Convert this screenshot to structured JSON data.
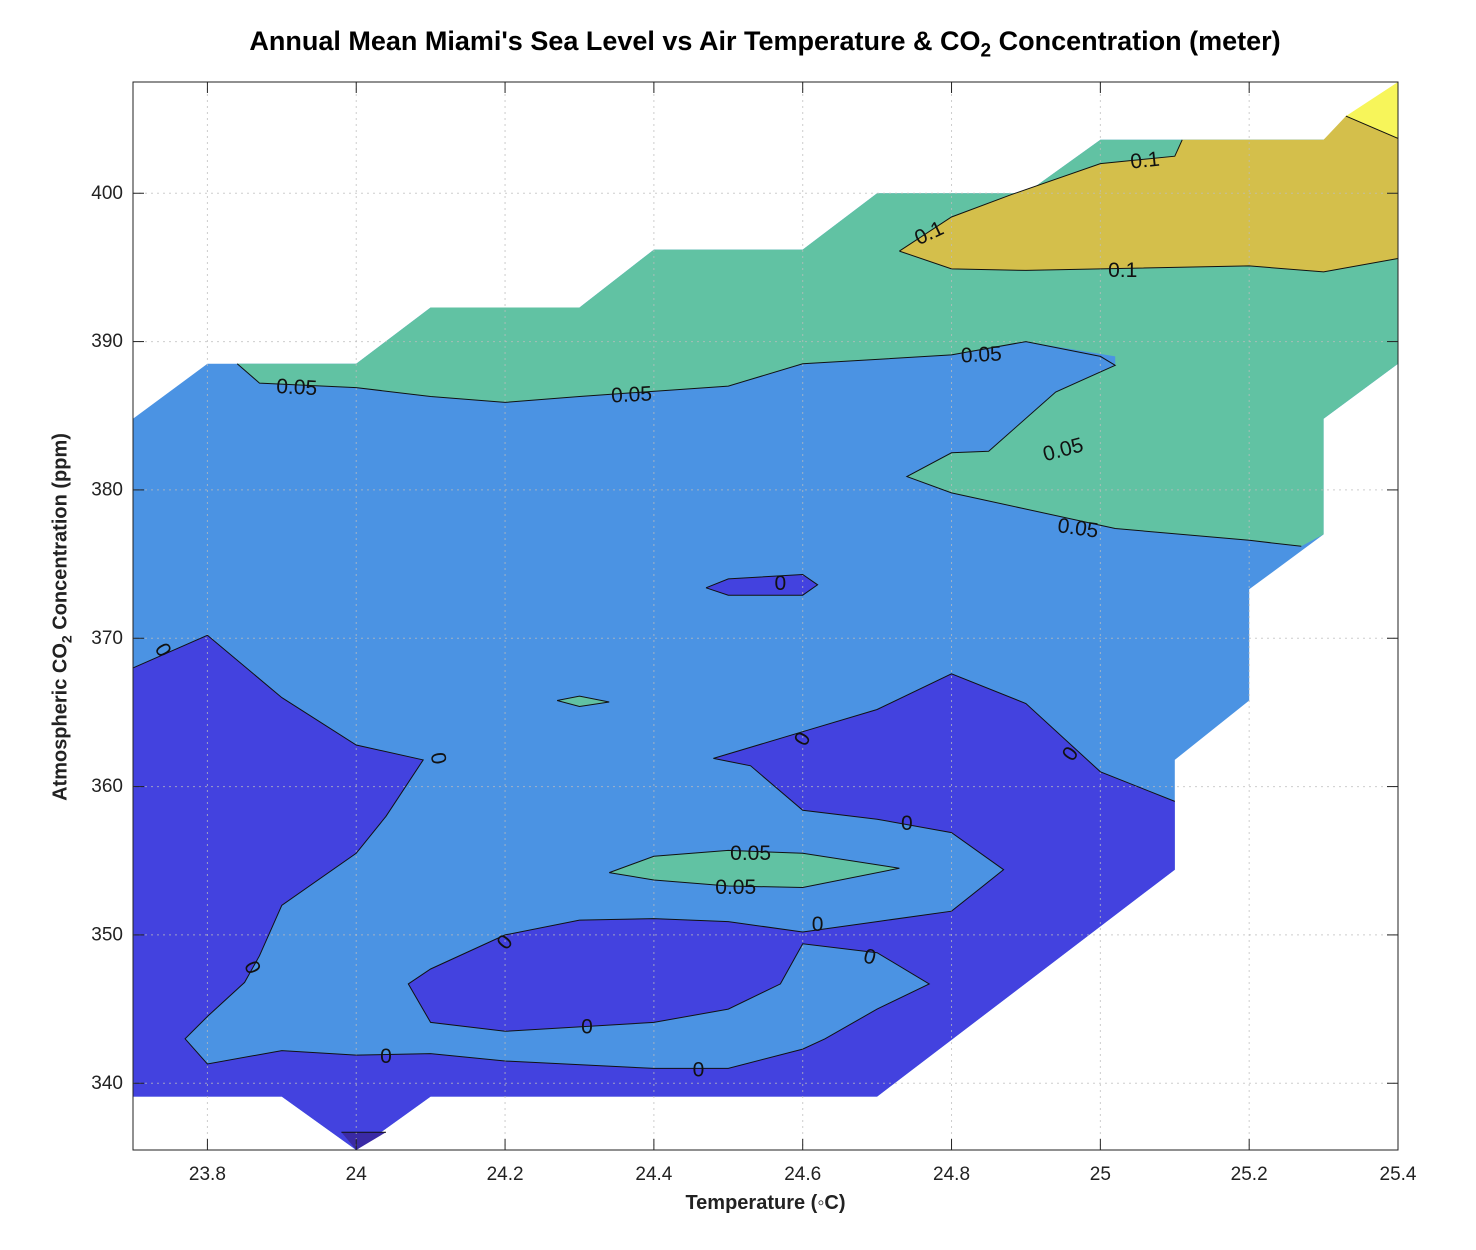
{
  "chart_data": {
    "type": "contour",
    "title_main": "Annual Mean Miami's Sea Level vs Air Temperature & CO",
    "title_sub": "2",
    "title_tail": " Concentration (meter)",
    "xlabel": "Temperature (◦C)",
    "ylabel_main": "Atmospheric CO",
    "ylabel_sub": "2",
    "ylabel_tail": " Concentration (ppm)",
    "xlim": [
      23.7,
      25.4
    ],
    "ylim": [
      335.5,
      407.5
    ],
    "xticks": [
      23.8,
      24,
      24.2,
      24.4,
      24.6,
      24.8,
      25,
      25.2,
      25.4
    ],
    "xtick_labels": [
      "23.8",
      "24",
      "24.2",
      "24.4",
      "24.6",
      "24.8",
      "25",
      "25.2",
      "25.4"
    ],
    "yticks": [
      340,
      350,
      360,
      370,
      380,
      390,
      400
    ],
    "ytick_labels": [
      "340",
      "350",
      "360",
      "370",
      "380",
      "390",
      "400"
    ],
    "grid": true,
    "levels": [
      -0.05,
      0,
      0.05,
      0.1,
      0.15
    ],
    "level_colors": {
      "below_-0.05": "#3a2aa5",
      "-0.05_to_0": "#4342df",
      "0_to_0.05": "#4b93e3",
      "0.05_to_0.1": "#61c2a3",
      "0.1_to_0.15": "#d4bf4b",
      "above_0.15": "#f7f55a"
    },
    "regions": [
      {
        "level": "0_to_0.05",
        "points": [
          [
            23.7,
            384.8
          ],
          [
            23.8,
            388.5
          ],
          [
            24,
            388.5
          ],
          [
            24.1,
            392.3
          ],
          [
            24.3,
            392.3
          ],
          [
            24.4,
            396.2
          ],
          [
            24.6,
            396.2
          ],
          [
            24.7,
            400
          ],
          [
            24.9,
            400
          ],
          [
            25,
            403.6
          ],
          [
            25.3,
            403.6
          ],
          [
            25.4,
            407.5
          ],
          [
            25.4,
            388.5
          ],
          [
            25.3,
            384.8
          ],
          [
            25.3,
            377
          ],
          [
            25.2,
            373.3
          ],
          [
            25.2,
            365.8
          ],
          [
            25.1,
            361.8
          ],
          [
            25.1,
            354.4
          ],
          [
            24.7,
            339.1
          ],
          [
            24.1,
            339.1
          ],
          [
            24,
            335.5
          ],
          [
            23.9,
            339.1
          ],
          [
            23.7,
            339.1
          ]
        ]
      },
      {
        "level": "0.05_to_0.1",
        "points": [
          [
            23.84,
            388.5
          ],
          [
            24,
            388.5
          ],
          [
            24.1,
            392.3
          ],
          [
            24.3,
            392.3
          ],
          [
            24.4,
            396.2
          ],
          [
            24.6,
            396.2
          ],
          [
            24.7,
            400
          ],
          [
            24.9,
            400
          ],
          [
            25,
            403.6
          ],
          [
            25.3,
            403.6
          ],
          [
            25.4,
            407.5
          ],
          [
            25.4,
            388.5
          ],
          [
            25.3,
            384.8
          ],
          [
            25.3,
            377
          ],
          [
            25.27,
            376.2
          ],
          [
            25.2,
            376.6
          ],
          [
            25.02,
            377.4
          ],
          [
            24.8,
            379.8
          ],
          [
            24.74,
            380.9
          ],
          [
            24.8,
            382.5
          ],
          [
            24.85,
            382.6
          ],
          [
            24.94,
            386.6
          ],
          [
            25.02,
            388.4
          ],
          [
            25.02,
            389
          ],
          [
            24.9,
            390
          ],
          [
            24.8,
            389.1
          ],
          [
            24.6,
            388.5
          ],
          [
            24.5,
            387
          ],
          [
            24.3,
            386.3
          ],
          [
            24.2,
            385.9
          ],
          [
            24.1,
            386.3
          ],
          [
            24,
            386.9
          ],
          [
            23.87,
            387.2
          ]
        ]
      },
      {
        "level": "0.1_to_0.15",
        "points": [
          [
            24.73,
            396.1
          ],
          [
            24.8,
            394.9
          ],
          [
            24.9,
            394.8
          ],
          [
            25.2,
            395.1
          ],
          [
            25.3,
            394.7
          ],
          [
            25.4,
            395.6
          ],
          [
            25.4,
            403.7
          ],
          [
            25.33,
            405.2
          ],
          [
            25.3,
            403.6
          ],
          [
            25.11,
            403.6
          ],
          [
            25.1,
            402.5
          ],
          [
            25,
            402
          ],
          [
            24.88,
            399.9
          ],
          [
            24.8,
            398.4
          ]
        ]
      },
      {
        "level": "above_0.15",
        "points": [
          [
            25.33,
            405.2
          ],
          [
            25.4,
            403.7
          ],
          [
            25.4,
            407.5
          ]
        ]
      },
      {
        "level": "-0.05_to_0",
        "points": [
          [
            23.7,
            368
          ],
          [
            23.8,
            370.2
          ],
          [
            23.9,
            366
          ],
          [
            24,
            362.8
          ],
          [
            24.09,
            361.8
          ],
          [
            24.04,
            358
          ],
          [
            24,
            355.5
          ],
          [
            23.9,
            352
          ],
          [
            23.87,
            348.6
          ],
          [
            23.85,
            346.8
          ],
          [
            23.8,
            344.5
          ],
          [
            23.77,
            343
          ],
          [
            23.8,
            341.3
          ],
          [
            23.9,
            342.2
          ],
          [
            24,
            341.9
          ],
          [
            24.1,
            342
          ],
          [
            24.2,
            341.5
          ],
          [
            24.4,
            341
          ],
          [
            24.5,
            341
          ],
          [
            24.6,
            342.3
          ],
          [
            24.63,
            343
          ],
          [
            24.7,
            345
          ],
          [
            24.77,
            346.7
          ],
          [
            24.7,
            348.8
          ],
          [
            24.6,
            349.4
          ],
          [
            24.57,
            346.7
          ],
          [
            24.5,
            345
          ],
          [
            24.4,
            344.1
          ],
          [
            24.2,
            343.5
          ],
          [
            24.1,
            344.1
          ],
          [
            24.07,
            346.7
          ],
          [
            24.1,
            347.7
          ],
          [
            24.2,
            350
          ],
          [
            24.3,
            351
          ],
          [
            24.4,
            351.1
          ],
          [
            24.5,
            350.9
          ],
          [
            24.6,
            350.2
          ],
          [
            24.7,
            350.9
          ],
          [
            24.8,
            351.6
          ],
          [
            24.87,
            354.4
          ],
          [
            24.8,
            356.9
          ],
          [
            24.7,
            357.8
          ],
          [
            24.6,
            358.4
          ],
          [
            24.53,
            361.4
          ],
          [
            24.48,
            361.9
          ],
          [
            24.6,
            363.7
          ],
          [
            24.7,
            365.2
          ],
          [
            24.8,
            367.6
          ],
          [
            24.9,
            365.6
          ],
          [
            25,
            361
          ],
          [
            25.1,
            359
          ],
          [
            25.1,
            354.4
          ],
          [
            24.7,
            339.1
          ],
          [
            24.1,
            339.1
          ],
          [
            24,
            335.5
          ],
          [
            23.9,
            339.1
          ],
          [
            23.7,
            339.1
          ]
        ]
      },
      {
        "level": "-0.05_to_0",
        "points": [
          [
            24.47,
            373.4
          ],
          [
            24.5,
            374
          ],
          [
            24.6,
            374.3
          ],
          [
            24.62,
            373.6
          ],
          [
            24.6,
            372.9
          ],
          [
            24.5,
            372.9
          ]
        ]
      },
      {
        "level": "below_-0.05",
        "points": [
          [
            23.98,
            336.7
          ],
          [
            24.04,
            336.7
          ],
          [
            24,
            335.5
          ]
        ]
      },
      {
        "level": "0.05_to_0.1",
        "points": [
          [
            24.34,
            354.2
          ],
          [
            24.4,
            355.3
          ],
          [
            24.5,
            355.7
          ],
          [
            24.6,
            355.5
          ],
          [
            24.73,
            354.5
          ],
          [
            24.6,
            353.2
          ],
          [
            24.5,
            353.3
          ],
          [
            24.4,
            353.7
          ]
        ]
      },
      {
        "level": "0.05_to_0.1",
        "points": [
          [
            24.27,
            365.8
          ],
          [
            24.3,
            366.1
          ],
          [
            24.34,
            365.7
          ],
          [
            24.3,
            365.4
          ]
        ]
      }
    ],
    "contour_lines": [
      [
        [
          23.84,
          388.5
        ],
        [
          23.87,
          387.2
        ],
        [
          24,
          386.9
        ],
        [
          24.1,
          386.3
        ],
        [
          24.2,
          385.9
        ],
        [
          24.3,
          386.3
        ],
        [
          24.5,
          387
        ],
        [
          24.6,
          388.5
        ],
        [
          24.8,
          389.1
        ],
        [
          24.9,
          390
        ],
        [
          25,
          389
        ],
        [
          25.02,
          388.4
        ],
        [
          24.94,
          386.6
        ],
        [
          24.85,
          382.6
        ],
        [
          24.8,
          382.5
        ],
        [
          24.74,
          380.9
        ],
        [
          24.8,
          379.8
        ],
        [
          25.02,
          377.4
        ],
        [
          25.2,
          376.6
        ],
        [
          25.27,
          376.2
        ]
      ],
      [
        [
          24.73,
          396.1
        ],
        [
          24.8,
          394.9
        ],
        [
          24.9,
          394.8
        ],
        [
          25.2,
          395.1
        ],
        [
          25.3,
          394.7
        ],
        [
          25.4,
          395.6
        ]
      ],
      [
        [
          24.73,
          396.1
        ],
        [
          24.8,
          398.4
        ],
        [
          24.88,
          399.9
        ],
        [
          25,
          402
        ],
        [
          25.1,
          402.5
        ],
        [
          25.11,
          403.6
        ]
      ],
      [
        [
          25.33,
          405.2
        ],
        [
          25.4,
          403.7
        ]
      ],
      [
        [
          23.7,
          368
        ],
        [
          23.8,
          370.2
        ],
        [
          23.9,
          366
        ],
        [
          24,
          362.8
        ],
        [
          24.09,
          361.8
        ],
        [
          24.04,
          358
        ],
        [
          24,
          355.5
        ],
        [
          23.9,
          352
        ],
        [
          23.87,
          348.6
        ],
        [
          23.85,
          346.8
        ],
        [
          23.8,
          344.5
        ],
        [
          23.77,
          343
        ],
        [
          23.8,
          341.3
        ],
        [
          23.9,
          342.2
        ],
        [
          24,
          341.9
        ],
        [
          24.1,
          342
        ],
        [
          24.2,
          341.5
        ],
        [
          24.4,
          341
        ],
        [
          24.5,
          341
        ],
        [
          24.6,
          342.3
        ],
        [
          24.63,
          343
        ],
        [
          24.7,
          345
        ],
        [
          24.77,
          346.7
        ],
        [
          24.7,
          348.8
        ],
        [
          24.6,
          349.4
        ],
        [
          24.57,
          346.7
        ],
        [
          24.5,
          345
        ],
        [
          24.4,
          344.1
        ],
        [
          24.2,
          343.5
        ],
        [
          24.1,
          344.1
        ],
        [
          24.07,
          346.7
        ],
        [
          24.1,
          347.7
        ],
        [
          24.2,
          350
        ],
        [
          24.3,
          351
        ],
        [
          24.4,
          351.1
        ],
        [
          24.5,
          350.9
        ],
        [
          24.6,
          350.2
        ],
        [
          24.7,
          350.9
        ],
        [
          24.8,
          351.6
        ],
        [
          24.87,
          354.4
        ],
        [
          24.8,
          356.9
        ],
        [
          24.7,
          357.8
        ],
        [
          24.6,
          358.4
        ],
        [
          24.53,
          361.4
        ],
        [
          24.48,
          361.9
        ],
        [
          24.6,
          363.7
        ],
        [
          24.7,
          365.2
        ],
        [
          24.8,
          367.6
        ],
        [
          24.9,
          365.6
        ],
        [
          25,
          361
        ],
        [
          25.1,
          359
        ]
      ],
      [
        [
          24.47,
          373.4
        ],
        [
          24.5,
          374
        ],
        [
          24.6,
          374.3
        ],
        [
          24.62,
          373.6
        ],
        [
          24.6,
          372.9
        ],
        [
          24.5,
          372.9
        ],
        [
          24.47,
          373.4
        ]
      ],
      [
        [
          23.98,
          336.7
        ],
        [
          24.04,
          336.7
        ]
      ],
      [
        [
          24.34,
          354.2
        ],
        [
          24.4,
          355.3
        ],
        [
          24.5,
          355.7
        ],
        [
          24.6,
          355.5
        ],
        [
          24.73,
          354.5
        ],
        [
          24.6,
          353.2
        ],
        [
          24.5,
          353.3
        ],
        [
          24.4,
          353.7
        ],
        [
          24.34,
          354.2
        ]
      ],
      [
        [
          24.27,
          365.8
        ],
        [
          24.3,
          366.1
        ],
        [
          24.34,
          365.7
        ],
        [
          24.3,
          365.4
        ],
        [
          24.27,
          365.8
        ]
      ]
    ],
    "contour_labels": [
      {
        "text": "0.05",
        "x": 23.92,
        "y": 386.9,
        "angle": 3
      },
      {
        "text": "0.05",
        "x": 24.37,
        "y": 386.4,
        "angle": -3
      },
      {
        "text": "0.05",
        "x": 24.84,
        "y": 389.1,
        "angle": -3
      },
      {
        "text": "0.05",
        "x": 24.95,
        "y": 382.7,
        "angle": -15
      },
      {
        "text": "0.05",
        "x": 24.97,
        "y": 377.4,
        "angle": 8
      },
      {
        "text": "0.1",
        "x": 24.77,
        "y": 397.3,
        "angle": -25
      },
      {
        "text": "0.1",
        "x": 25.06,
        "y": 402.2,
        "angle": -6
      },
      {
        "text": "0.1",
        "x": 25.03,
        "y": 394.8,
        "angle": 0
      },
      {
        "text": "0",
        "x": 24.57,
        "y": 373.7,
        "angle": 0
      },
      {
        "text": "0",
        "x": 23.74,
        "y": 369.2,
        "angle": 60
      },
      {
        "text": "0",
        "x": 24.11,
        "y": 361.9,
        "angle": 80
      },
      {
        "text": "0",
        "x": 24.6,
        "y": 363.2,
        "angle": -60
      },
      {
        "text": "0",
        "x": 24.96,
        "y": 362.2,
        "angle": -55
      },
      {
        "text": "0",
        "x": 24.74,
        "y": 357.5,
        "angle": 0
      },
      {
        "text": "0.05",
        "x": 24.53,
        "y": 355.5,
        "angle": 0
      },
      {
        "text": "0.05",
        "x": 24.51,
        "y": 353.2,
        "angle": 0
      },
      {
        "text": "0",
        "x": 24.62,
        "y": 350.7,
        "angle": 0
      },
      {
        "text": "0",
        "x": 24.2,
        "y": 349.5,
        "angle": -50
      },
      {
        "text": "0",
        "x": 24.69,
        "y": 348.5,
        "angle": 15
      },
      {
        "text": "0",
        "x": 23.86,
        "y": 347.8,
        "angle": 65
      },
      {
        "text": "0",
        "x": 24.31,
        "y": 343.8,
        "angle": 0
      },
      {
        "text": "0",
        "x": 24.04,
        "y": 341.8,
        "angle": 0
      },
      {
        "text": "0",
        "x": 24.46,
        "y": 340.9,
        "angle": 0
      }
    ]
  }
}
